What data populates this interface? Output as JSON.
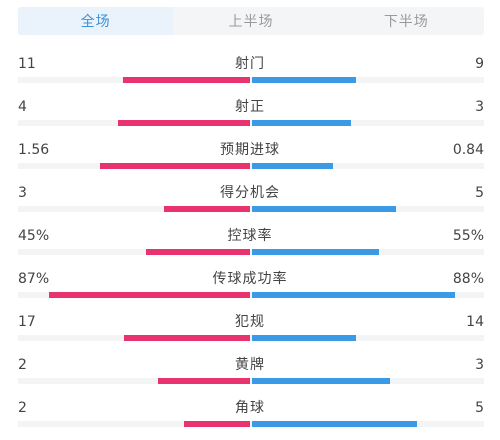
{
  "tabs": [
    {
      "label": "全场",
      "active": true
    },
    {
      "label": "上半场",
      "active": false
    },
    {
      "label": "下半场",
      "active": false
    }
  ],
  "colors": {
    "home_bar": "#e8336f",
    "away_bar": "#3a9ae6",
    "active_tab_text": "#3d92d8"
  },
  "stats": [
    {
      "label": "射门",
      "home": "11",
      "away": "9",
      "home_share": 0.55,
      "away_share": 0.45
    },
    {
      "label": "射正",
      "home": "4",
      "away": "3",
      "home_share": 0.571,
      "away_share": 0.429
    },
    {
      "label": "预期进球",
      "home": "1.56",
      "away": "0.84",
      "home_share": 0.65,
      "away_share": 0.35
    },
    {
      "label": "得分机会",
      "home": "3",
      "away": "5",
      "home_share": 0.375,
      "away_share": 0.625
    },
    {
      "label": "控球率",
      "home": "45%",
      "away": "55%",
      "home_share": 0.45,
      "away_share": 0.55
    },
    {
      "label": "传球成功率",
      "home": "87%",
      "away": "88%",
      "home_share": 0.87,
      "away_share": 0.88
    },
    {
      "label": "犯规",
      "home": "17",
      "away": "14",
      "home_share": 0.548,
      "away_share": 0.452
    },
    {
      "label": "黄牌",
      "home": "2",
      "away": "3",
      "home_share": 0.4,
      "away_share": 0.6
    },
    {
      "label": "角球",
      "home": "2",
      "away": "5",
      "home_share": 0.286,
      "away_share": 0.714
    }
  ]
}
